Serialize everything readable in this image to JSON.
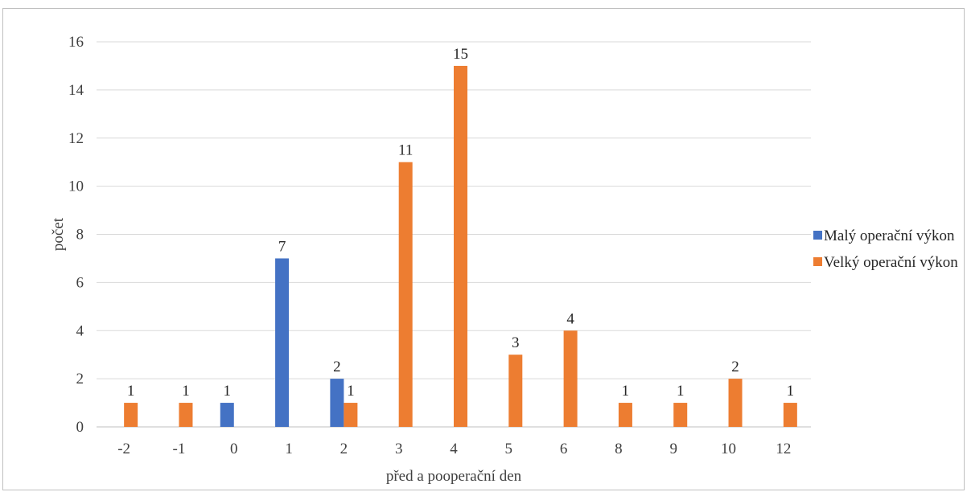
{
  "chart_data": {
    "type": "bar",
    "title": "",
    "xlabel": "před a pooperační den",
    "ylabel": "počet",
    "ylim": [
      0,
      16
    ],
    "yticks": [
      0,
      2,
      4,
      6,
      8,
      10,
      12,
      14,
      16
    ],
    "grid": true,
    "legend_position": "right",
    "categories": [
      "-2",
      "-1",
      "0",
      "1",
      "2",
      "3",
      "4",
      "5",
      "6",
      "8",
      "9",
      "10",
      "12"
    ],
    "series": [
      {
        "name": "Malý operační výkon",
        "color": "#4472c4",
        "values": [
          null,
          null,
          1,
          7,
          2,
          null,
          null,
          null,
          null,
          null,
          null,
          null,
          null
        ]
      },
      {
        "name": "Velký operační výkon",
        "color": "#ed7d31",
        "values": [
          1,
          1,
          null,
          null,
          1,
          11,
          15,
          3,
          4,
          1,
          1,
          2,
          1
        ]
      }
    ]
  }
}
